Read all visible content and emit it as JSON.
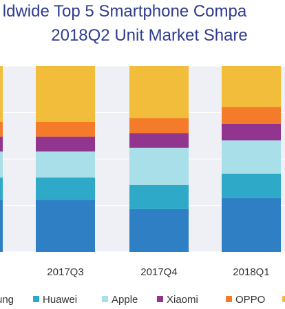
{
  "title_line1": "ldwide Top 5 Smartphone Compa",
  "title_line2": "2018Q2 Unit Market Share",
  "colors": {
    "title": "#2e3c8f",
    "grid_band": "#eef0f6"
  },
  "chart_data": {
    "type": "bar",
    "stacked": true,
    "title": "ldwide Top 5 Smartphone Compa 2018Q2 Unit Market Share",
    "categories": [
      "2017Q3",
      "2017Q4",
      "2018Q1"
    ],
    "ylim": [
      0,
      100
    ],
    "legend_position": "bottom",
    "series": [
      {
        "name": "ung",
        "color": "#2e7fc4",
        "values": [
          28,
          23,
          29
        ],
        "visible_on_left_edge_only": true
      },
      {
        "name": "Huawei",
        "color": "#2eaac8",
        "values": [
          12,
          13,
          13
        ]
      },
      {
        "name": "Apple",
        "color": "#a8dfe8",
        "values": [
          14,
          20,
          18
        ]
      },
      {
        "name": "Xiaomi",
        "color": "#92358f",
        "values": [
          8,
          8,
          9
        ]
      },
      {
        "name": "OPPO",
        "color": "#f47b2a",
        "values": [
          8,
          8,
          9
        ]
      },
      {
        "name": "",
        "color": "#f2bd3b",
        "values": [
          30,
          28,
          22
        ]
      }
    ]
  }
}
